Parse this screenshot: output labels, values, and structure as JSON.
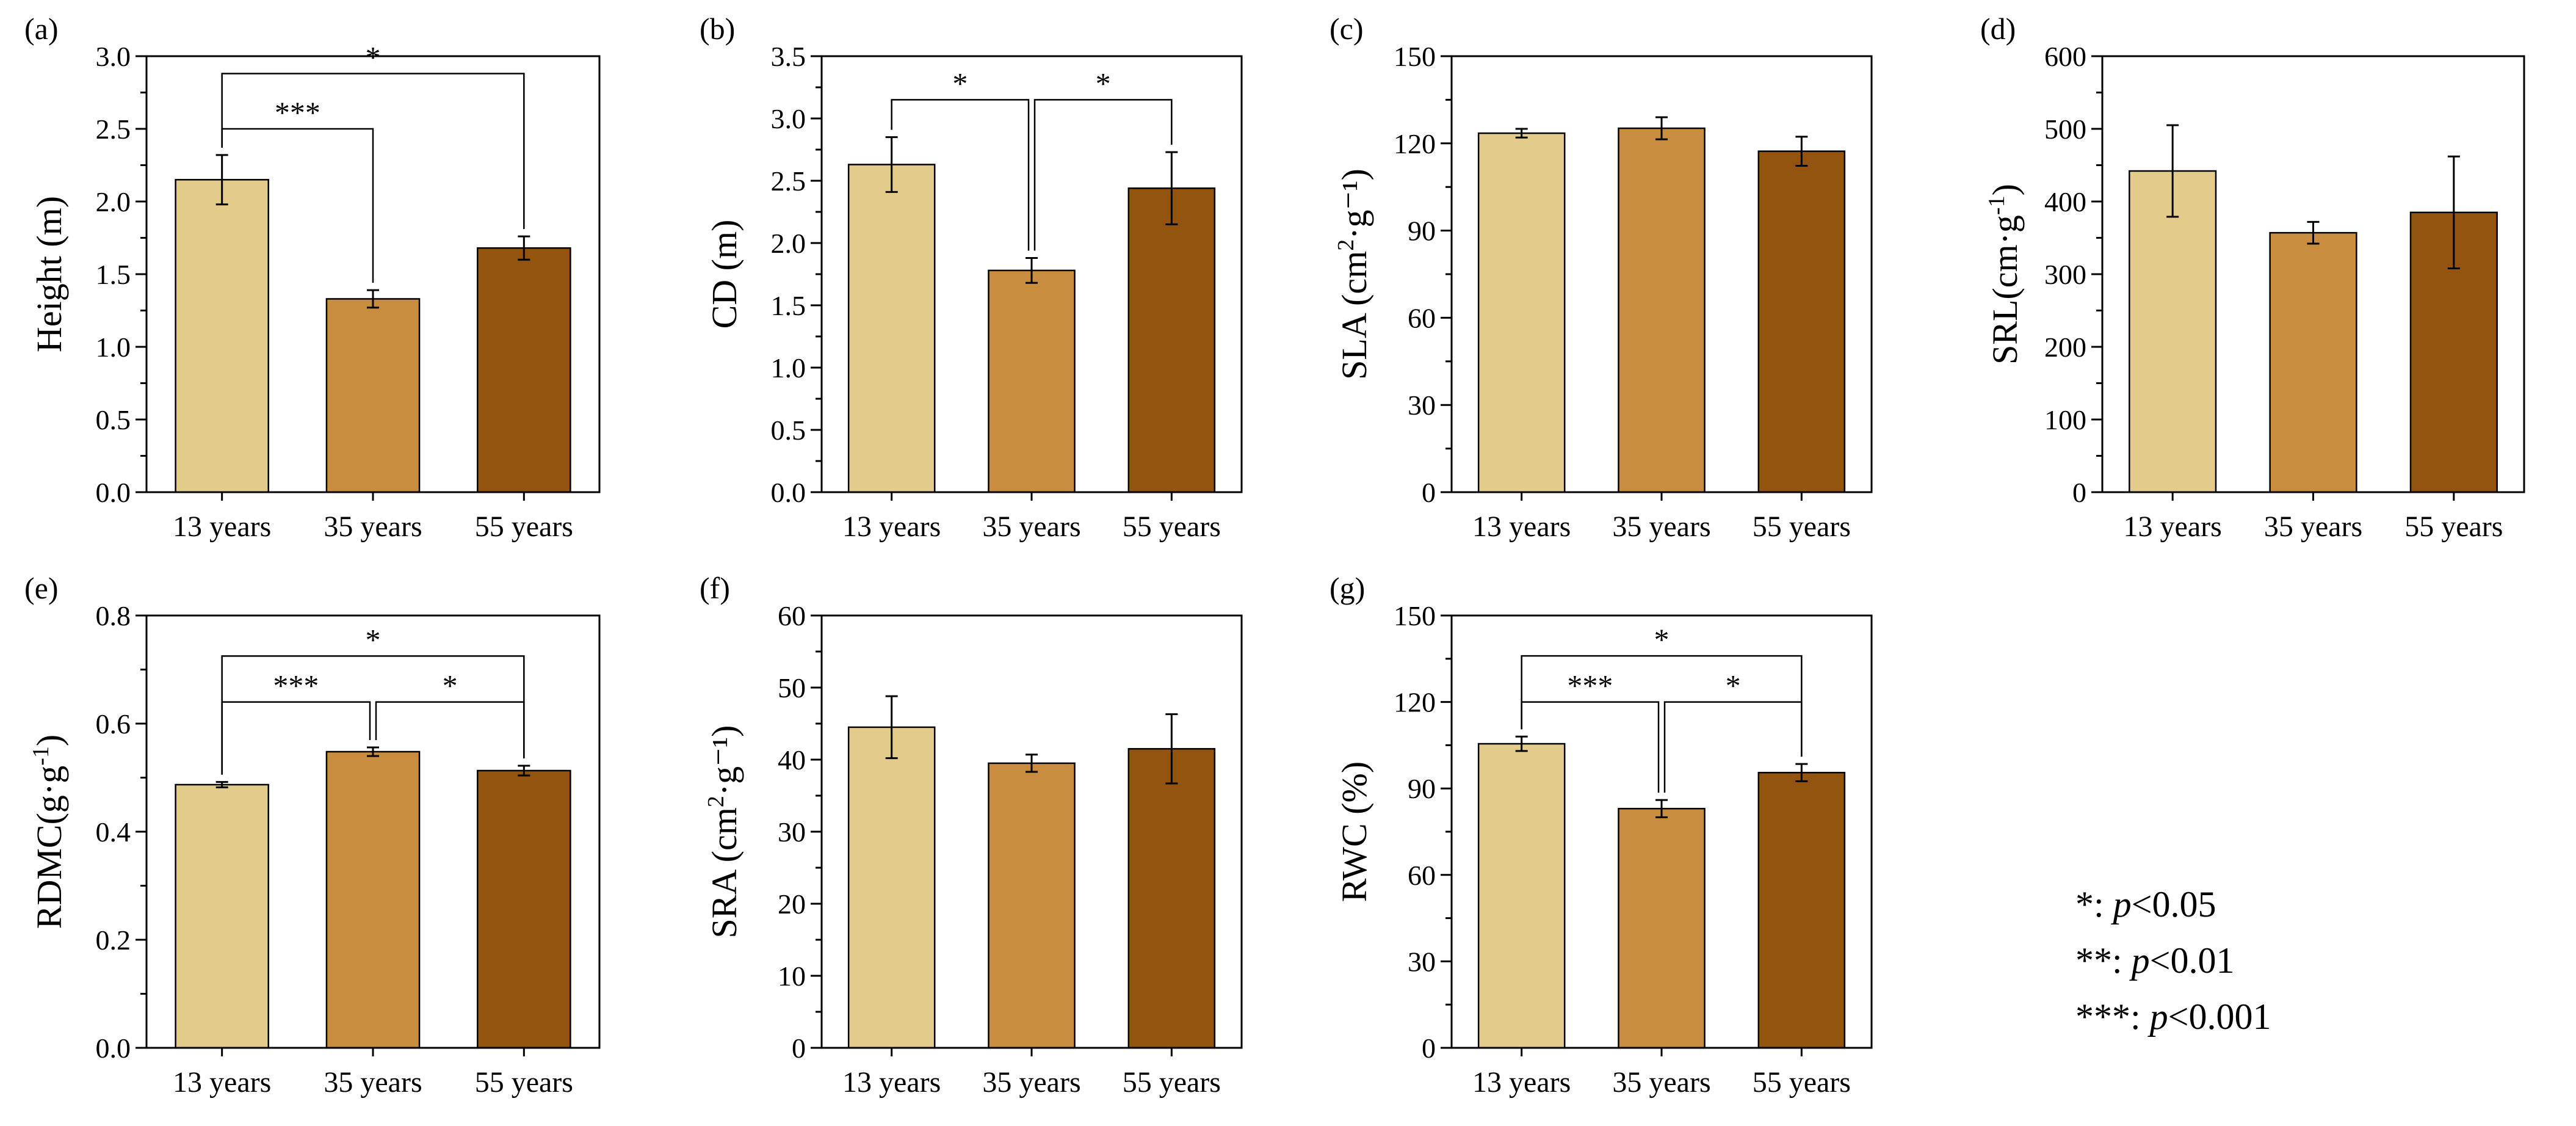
{
  "figure": {
    "categories": [
      "13 years",
      "35 years",
      "55 years"
    ],
    "colors": {
      "bar_13": "#E3CB8C",
      "bar_35": "#C88D3F",
      "bar_55": "#92540F",
      "axis": "#000000"
    }
  },
  "legend": {
    "items": [
      {
        "stars": "*",
        "sep": ": ",
        "p": "p",
        "rel": "<0.05"
      },
      {
        "stars": "**",
        "sep": ": ",
        "p": "p",
        "rel": "<0.01"
      },
      {
        "stars": "***",
        "sep": ": ",
        "p": "p",
        "rel": "<0.001"
      }
    ]
  },
  "chart_data": [
    {
      "panel": "(a)",
      "type": "bar",
      "title": "",
      "categories": [
        "13 years",
        "35 years",
        "55 years"
      ],
      "values": [
        2.15,
        1.33,
        1.68
      ],
      "errors": [
        0.17,
        0.06,
        0.08
      ],
      "ylabel": {
        "main": "Height (m)",
        "sup": "",
        "end": ""
      },
      "ylim": [
        0,
        3.0
      ],
      "yticks": [
        "0.0",
        "0.5",
        "1.0",
        "1.5",
        "2.0",
        "2.5",
        "3.0"
      ],
      "brackets": [
        {
          "from": 0,
          "to": 2,
          "label": "*",
          "level": 2.88
        },
        {
          "from": 0,
          "to": 1,
          "label": "***",
          "level": 2.5
        }
      ]
    },
    {
      "panel": "(b)",
      "type": "bar",
      "title": "",
      "categories": [
        "13 years",
        "35 years",
        "55 years"
      ],
      "values": [
        2.63,
        1.78,
        2.44
      ],
      "errors": [
        0.22,
        0.1,
        0.29
      ],
      "ylabel": {
        "main": "CD (m)",
        "sup": "",
        "end": ""
      },
      "ylim": [
        0,
        3.5
      ],
      "yticks": [
        "0.0",
        "0.5",
        "1.0",
        "1.5",
        "2.0",
        "2.5",
        "3.0",
        "3.5"
      ],
      "brackets": [
        {
          "from": 0,
          "to": 1,
          "label": "*",
          "level": 3.15
        },
        {
          "from": 1,
          "to": 2,
          "label": "*",
          "level": 3.15
        }
      ]
    },
    {
      "panel": "(c)",
      "type": "bar",
      "title": "",
      "categories": [
        "13 years",
        "35 years",
        "55 years"
      ],
      "values": [
        123.5,
        125.2,
        117.3
      ],
      "errors": [
        1.5,
        3.8,
        5.0
      ],
      "ylabel": {
        "main": "SLA (cm",
        "sup": "2",
        "end": "·g⁻¹)"
      },
      "ylim": [
        0,
        150
      ],
      "yticks": [
        "0",
        "30",
        "60",
        "90",
        "120",
        "150"
      ],
      "brackets": []
    },
    {
      "panel": "(d)",
      "type": "bar",
      "title": "",
      "categories": [
        "13 years",
        "35 years",
        "55 years"
      ],
      "values": [
        442,
        357,
        385
      ],
      "errors": [
        63,
        15,
        77
      ],
      "ylabel": {
        "main": "SRL(cm·g",
        "sup": "-1",
        "end": ")"
      },
      "ylim": [
        0,
        600
      ],
      "yticks": [
        "0",
        "100",
        "200",
        "300",
        "400",
        "500",
        "600"
      ],
      "brackets": []
    },
    {
      "panel": "(e)",
      "type": "bar",
      "title": "",
      "categories": [
        "13 years",
        "35 years",
        "55 years"
      ],
      "values": [
        0.487,
        0.548,
        0.513
      ],
      "errors": [
        0.005,
        0.008,
        0.009
      ],
      "ylabel": {
        "main": "RDMC(g·g",
        "sup": "-1",
        "end": ")"
      },
      "ylim": [
        0,
        0.8
      ],
      "yticks": [
        "0.0",
        "0.2",
        "0.4",
        "0.6",
        "0.8"
      ],
      "brackets": [
        {
          "from": 0,
          "to": 2,
          "label": "*",
          "level": 0.725
        },
        {
          "from": 0,
          "to": 1,
          "label": "***",
          "level": 0.64
        },
        {
          "from": 1,
          "to": 2,
          "label": "*",
          "level": 0.64
        }
      ]
    },
    {
      "panel": "(f)",
      "type": "bar",
      "title": "",
      "categories": [
        "13 years",
        "35 years",
        "55 years"
      ],
      "values": [
        44.5,
        39.5,
        41.5
      ],
      "errors": [
        4.3,
        1.2,
        4.8
      ],
      "ylabel": {
        "main": "SRA (cm",
        "sup": "2",
        "end": "·g⁻¹)"
      },
      "ylim": [
        0,
        60
      ],
      "yticks": [
        "0",
        "10",
        "20",
        "30",
        "40",
        "50",
        "60"
      ],
      "brackets": []
    },
    {
      "panel": "(g)",
      "type": "bar",
      "title": "",
      "categories": [
        "13 years",
        "35 years",
        "55 years"
      ],
      "values": [
        105.5,
        83,
        95.5
      ],
      "errors": [
        2.5,
        3.0,
        3.0
      ],
      "ylabel": {
        "main": "RWC (%)",
        "sup": "",
        "end": ""
      },
      "ylim": [
        0,
        150
      ],
      "yticks": [
        "0",
        "30",
        "60",
        "90",
        "120",
        "150"
      ],
      "brackets": [
        {
          "from": 0,
          "to": 2,
          "label": "*",
          "level": 136
        },
        {
          "from": 0,
          "to": 1,
          "label": "***",
          "level": 120
        },
        {
          "from": 1,
          "to": 2,
          "label": "*",
          "level": 120
        }
      ]
    }
  ]
}
